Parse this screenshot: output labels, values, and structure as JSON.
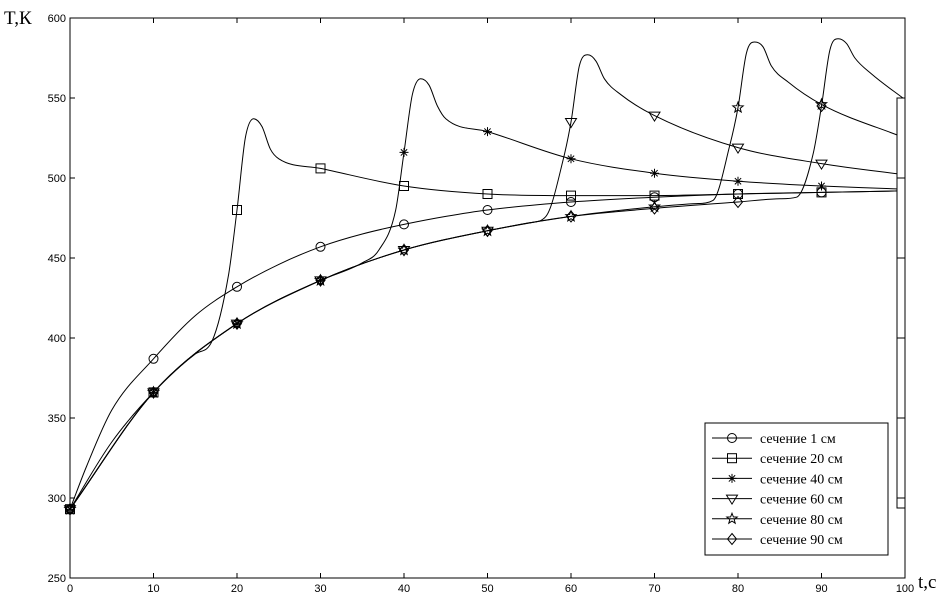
{
  "chart_data": {
    "type": "line",
    "ylabel": "T,К",
    "xlabel": "t,с",
    "xlim": [
      0,
      100
    ],
    "ylim": [
      250,
      600
    ],
    "x_ticks": [
      "0",
      "10",
      "20",
      "30",
      "40",
      "50",
      "60",
      "70",
      "80",
      "90",
      "100"
    ],
    "y_ticks": [
      "250",
      "300",
      "350",
      "400",
      "450",
      "500",
      "550",
      "600"
    ],
    "grid": false,
    "legend_position": "bottom-right",
    "series": [
      {
        "name": "сечение 1 см",
        "marker": "circle",
        "points": [
          [
            0,
            293
          ],
          [
            2,
            320
          ],
          [
            5,
            355
          ],
          [
            10,
            387
          ],
          [
            15,
            414
          ],
          [
            20,
            432
          ],
          [
            25,
            446
          ],
          [
            30,
            457
          ],
          [
            35,
            465
          ],
          [
            40,
            471
          ],
          [
            45,
            476
          ],
          [
            50,
            480
          ],
          [
            60,
            485
          ],
          [
            70,
            488
          ],
          [
            80,
            490
          ],
          [
            90,
            491
          ],
          [
            100,
            492
          ]
        ]
      },
      {
        "name": "сечение 20 см",
        "marker": "square",
        "points": [
          [
            0,
            293
          ],
          [
            5,
            335
          ],
          [
            10,
            366
          ],
          [
            15,
            390
          ],
          [
            17,
            398
          ],
          [
            19,
            440
          ],
          [
            20,
            480
          ],
          [
            21,
            525
          ],
          [
            22,
            537
          ],
          [
            23,
            532
          ],
          [
            24,
            518
          ],
          [
            25,
            512
          ],
          [
            30,
            506
          ],
          [
            40,
            495
          ],
          [
            50,
            490
          ],
          [
            60,
            489
          ],
          [
            70,
            489
          ],
          [
            80,
            490
          ],
          [
            90,
            491
          ],
          [
            100,
            492
          ]
        ]
      },
      {
        "name": "сечение 40 см",
        "marker": "star",
        "points": [
          [
            0,
            293
          ],
          [
            10,
            366
          ],
          [
            20,
            409
          ],
          [
            30,
            436
          ],
          [
            35,
            447
          ],
          [
            37,
            455
          ],
          [
            39,
            480
          ],
          [
            40,
            516
          ],
          [
            41,
            552
          ],
          [
            42,
            562
          ],
          [
            43,
            558
          ],
          [
            44,
            545
          ],
          [
            45,
            537
          ],
          [
            50,
            529
          ],
          [
            60,
            512
          ],
          [
            70,
            503
          ],
          [
            80,
            498
          ],
          [
            90,
            495
          ],
          [
            100,
            493
          ]
        ]
      },
      {
        "name": "сечение 60 см",
        "marker": "triangle-down",
        "points": [
          [
            0,
            293
          ],
          [
            10,
            366
          ],
          [
            20,
            409
          ],
          [
            30,
            436
          ],
          [
            40,
            455
          ],
          [
            50,
            467
          ],
          [
            55,
            472
          ],
          [
            57,
            476
          ],
          [
            59,
            510
          ],
          [
            60,
            535
          ],
          [
            61,
            570
          ],
          [
            62,
            577
          ],
          [
            63,
            573
          ],
          [
            64,
            562
          ],
          [
            66,
            552
          ],
          [
            70,
            539
          ],
          [
            80,
            519
          ],
          [
            90,
            509
          ],
          [
            100,
            502
          ]
        ]
      },
      {
        "name": "сечение 80 см",
        "marker": "pentagram",
        "points": [
          [
            0,
            293
          ],
          [
            10,
            366
          ],
          [
            20,
            409
          ],
          [
            30,
            436
          ],
          [
            40,
            455
          ],
          [
            50,
            467
          ],
          [
            60,
            476
          ],
          [
            70,
            482
          ],
          [
            75,
            484
          ],
          [
            77,
            486
          ],
          [
            79,
            520
          ],
          [
            80,
            544
          ],
          [
            81,
            578
          ],
          [
            82,
            585
          ],
          [
            83,
            582
          ],
          [
            84,
            570
          ],
          [
            86,
            560
          ],
          [
            90,
            546
          ],
          [
            100,
            525
          ]
        ]
      },
      {
        "name": "сечение 90 см",
        "marker": "diamond",
        "points": [
          [
            0,
            293
          ],
          [
            10,
            366
          ],
          [
            20,
            409
          ],
          [
            30,
            436
          ],
          [
            40,
            455
          ],
          [
            50,
            467
          ],
          [
            60,
            476
          ],
          [
            70,
            481
          ],
          [
            80,
            485
          ],
          [
            85,
            487
          ],
          [
            87,
            488
          ],
          [
            89,
            515
          ],
          [
            90,
            545
          ],
          [
            91,
            580
          ],
          [
            92,
            587
          ],
          [
            93,
            584
          ],
          [
            94,
            575
          ],
          [
            96,
            565
          ],
          [
            100,
            549
          ]
        ]
      }
    ]
  }
}
